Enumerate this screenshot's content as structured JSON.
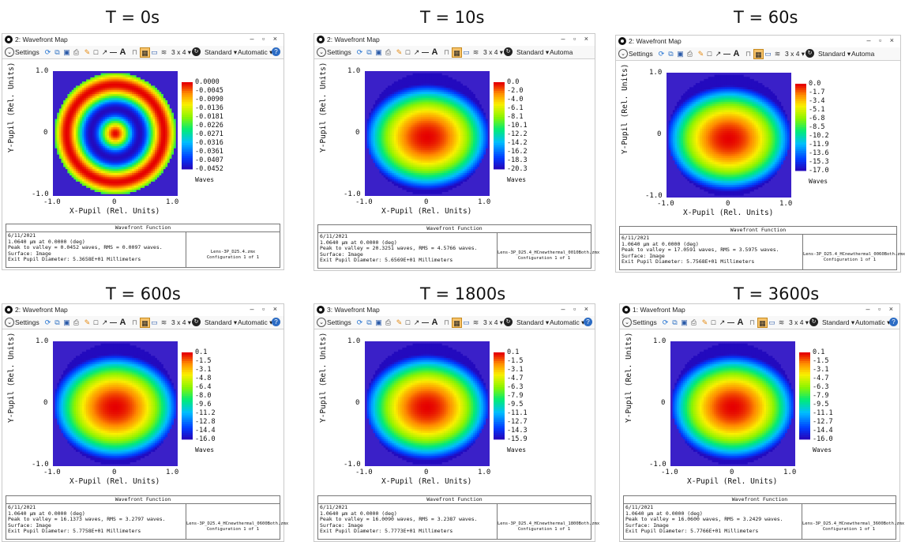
{
  "panels": [
    {
      "label": "T = 0s",
      "window_title": "2: Wavefront Map",
      "pattern": "rings",
      "colorbar_ticks": [
        "0.0000",
        "-0.0045",
        "-0.0090",
        "-0.0136",
        "-0.0181",
        "-0.0226",
        "-0.0271",
        "-0.0316",
        "-0.0361",
        "-0.0407",
        "-0.0452"
      ],
      "peak_to_valley_line": "Peak to valley = 0.0452 waves, RMS = 0.0097 waves.",
      "exit_pupil_line": "Exit Pupil Diameter: 5.3658E+01 Millimeters",
      "lens_file": "Lens-3P_D25.4.zmx",
      "show_automatic": true
    },
    {
      "label": "T = 10s",
      "window_title": "2: Wavefront Map",
      "pattern": "dome",
      "colorbar_ticks": [
        "0.0",
        "-2.0",
        "-4.0",
        "-6.1",
        "-8.1",
        "-10.1",
        "-12.2",
        "-14.2",
        "-16.2",
        "-18.3",
        "-20.3"
      ],
      "peak_to_valley_line": "Peak to valley = 20.3251 waves, RMS = 4.5766 waves.",
      "exit_pupil_line": "Exit Pupil Diameter: 5.6569E+01 Millimeters",
      "lens_file": "Lens-3P_D25.4_HCnewthermal_0010Both.zmx",
      "show_automatic": false
    },
    {
      "label": "T = 60s",
      "window_title": "2: Wavefront Map",
      "pattern": "dome",
      "colorbar_ticks": [
        "0.0",
        "-1.7",
        "-3.4",
        "-5.1",
        "-6.8",
        "-8.5",
        "-10.2",
        "-11.9",
        "-13.6",
        "-15.3",
        "-17.0"
      ],
      "peak_to_valley_line": "Peak to valley = 17.0591 waves, RMS = 3.5975 waves.",
      "exit_pupil_line": "Exit Pupil Diameter: 5.7568E+01 Millimeters",
      "lens_file": "Lens-3P_D25.4_HCnewthermal_0060Both.zmx",
      "show_automatic": false
    },
    {
      "label": "T = 600s",
      "window_title": "2: Wavefront Map",
      "pattern": "dome",
      "colorbar_ticks": [
        "0.1",
        "-1.5",
        "-3.1",
        "-4.8",
        "-6.4",
        "-8.0",
        "-9.6",
        "-11.2",
        "-12.8",
        "-14.4",
        "-16.0"
      ],
      "peak_to_valley_line": "Peak to valley = 16.1373 waves, RMS = 3.2797 waves.",
      "exit_pupil_line": "Exit Pupil Diameter: 5.7758E+01 Millimeters",
      "lens_file": "Lens-3P_D25.4_HCnewthermal_0600Both.zmx",
      "show_automatic": true
    },
    {
      "label": "T = 1800s",
      "window_title": "3: Wavefront Map",
      "pattern": "dome",
      "colorbar_ticks": [
        "0.1",
        "-1.5",
        "-3.1",
        "-4.7",
        "-6.3",
        "-7.9",
        "-9.5",
        "-11.1",
        "-12.7",
        "-14.3",
        "-15.9"
      ],
      "peak_to_valley_line": "Peak to valley = 16.0090 waves, RMS = 3.2387 waves.",
      "exit_pupil_line": "Exit Pupil Diameter: 5.7773E+01 Millimeters",
      "lens_file": "Lens-3P_D25.4_HCnewthermal_1800Both.zmx",
      "show_automatic": true
    },
    {
      "label": "T = 3600s",
      "window_title": "1: Wavefront Map",
      "pattern": "dome",
      "colorbar_ticks": [
        "0.1",
        "-1.5",
        "-3.1",
        "-4.7",
        "-6.3",
        "-7.9",
        "-9.5",
        "-11.1",
        "-12.7",
        "-14.4",
        "-16.0"
      ],
      "peak_to_valley_line": "Peak to valley = 16.0600 waves, RMS = 3.2429 waves.",
      "exit_pupil_line": "Exit Pupil Diameter: 5.7766E+01 Millimeters",
      "lens_file": "Lens-3P_D25.4_HCnewthermal_3600Both.zmx",
      "show_automatic": true
    }
  ],
  "common": {
    "settings_label": "Settings",
    "grid_label": "3 x 4",
    "standard_label": "Standard",
    "automatic_label": "Automatic",
    "automatic_cut_label": "Automa",
    "x_axis_label": "X-Pupil (Rel. Units)",
    "y_axis_label": "Y-Pupil (Rel. Units)",
    "axis_min": "-1.0",
    "axis_zero": "0",
    "axis_max": "1.0",
    "colorbar_unit": "Waves",
    "info_header": "Wavefront Function",
    "date_line": "6/11/2021",
    "wavelength_line": "1.0640 µm at 0.0000 (deg)",
    "surface_line": "Surface: Image",
    "config_line": "Configuration 1 of 1",
    "window_controls": "– ▫ ×",
    "colors": {
      "background": "#3a20c8",
      "accent": "#f5a623"
    }
  }
}
